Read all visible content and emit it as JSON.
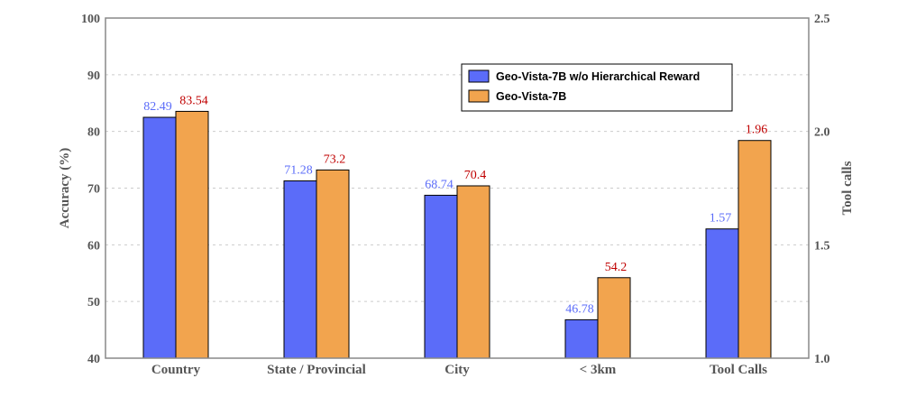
{
  "chart_data": {
    "type": "bar",
    "categories": [
      "Country",
      "State / Provincial",
      "City",
      "< 3km",
      "Tool Calls"
    ],
    "series": [
      {
        "name": "Geo-Vista-7B w/o Hierarchical Reward",
        "color": "#5b6cf9",
        "label_color": "#5b6cf9",
        "values": [
          82.49,
          71.28,
          68.74,
          46.78,
          1.57
        ],
        "labels": [
          "82.49",
          "71.28",
          "68.74",
          "46.78",
          "1.57"
        ]
      },
      {
        "name": "Geo-Vista-7B",
        "color": "#f2a44e",
        "label_color": "#c00000",
        "values": [
          83.54,
          73.2,
          70.4,
          54.2,
          1.96
        ],
        "labels": [
          "83.54",
          "73.2",
          "70.4",
          "54.2",
          "1.96"
        ]
      }
    ],
    "ylabel": "Accuracy (%)",
    "ylabel_right": "Tool calls",
    "ylim": [
      40,
      100
    ],
    "yticks": [
      "40",
      "50",
      "60",
      "70",
      "80",
      "90",
      "100"
    ],
    "ylim_right": [
      1.0,
      2.5
    ],
    "yticks_right": [
      "1.0",
      "1.5",
      "2.0",
      "2.5"
    ],
    "right_axis_categories": [
      "Tool Calls"
    ],
    "grid": true,
    "legend_position": "top-right"
  }
}
